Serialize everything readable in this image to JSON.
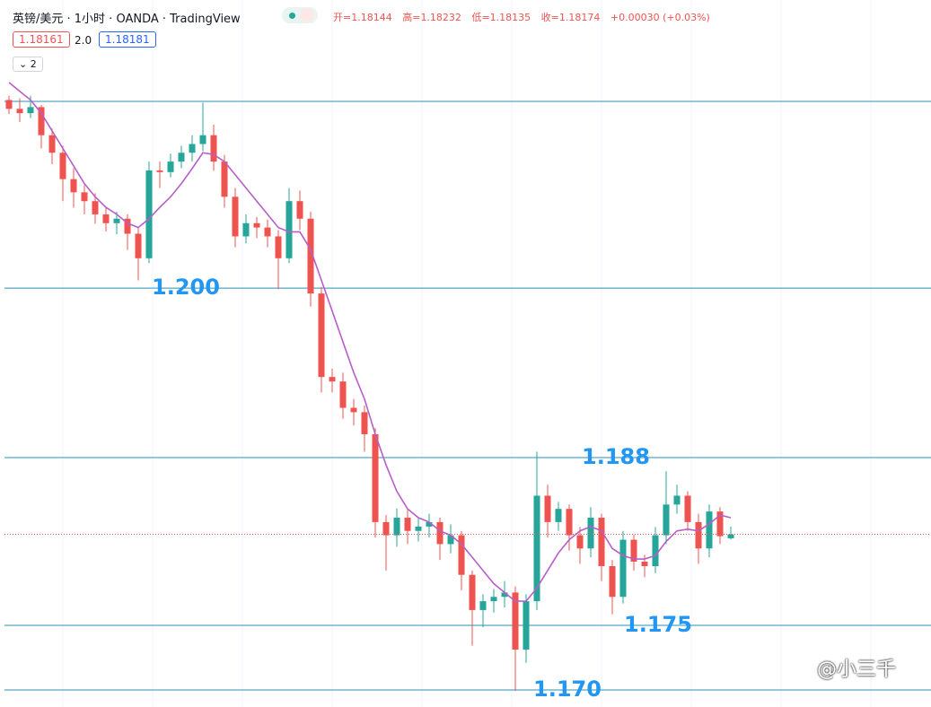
{
  "header": {
    "symbol": "英镑/美元 · 1小时 · OANDA · TradingView",
    "ohlc": [
      {
        "label": "开=",
        "value": 1.18144
      },
      {
        "label": "高=",
        "value": 1.18232
      },
      {
        "label": "低=",
        "value": 1.18135
      },
      {
        "label": "收=",
        "value": 1.18174
      }
    ],
    "change": "+0.00030 (+0.03%)",
    "bid": 1.18161,
    "spread": "2.0",
    "ask": 1.18181,
    "collapse": "2"
  },
  "watermark": "@小三千",
  "chart_data": {
    "type": "candlestick",
    "up_color": "#26a69a",
    "down_color": "#ef5350",
    "ylim": [
      1.16865,
      1.22225
    ],
    "open": [
      1.21467,
      1.214,
      1.21367,
      1.21413,
      1.212,
      1.21067,
      1.20867,
      1.20767,
      1.207,
      1.206,
      1.20533,
      1.20567,
      1.20453,
      1.20267,
      1.20933,
      1.2092,
      1.21,
      1.21067,
      1.21133,
      1.212,
      1.21,
      1.20733,
      1.20433,
      1.20533,
      1.205,
      1.20433,
      1.20267,
      1.207,
      1.20567,
      1.2,
      1.19367,
      1.19333,
      1.19133,
      1.191,
      1.18933,
      1.18267,
      1.18167,
      1.183,
      1.182,
      1.18233,
      1.18267,
      1.181,
      1.18167,
      1.17867,
      1.176,
      1.17667,
      1.177,
      1.17733,
      1.173,
      1.17667,
      1.18467,
      1.18267,
      1.18367,
      1.18167,
      1.18067,
      1.183,
      1.17933,
      1.177,
      1.18133,
      1.17967,
      1.17933,
      1.18167,
      1.184,
      1.18467,
      1.18267,
      1.18067,
      1.18347,
      1.18144
    ],
    "high": [
      1.215,
      1.2148,
      1.215,
      1.2143,
      1.2125,
      1.2112,
      1.2095,
      1.2082,
      1.2076,
      1.2065,
      1.2062,
      1.206,
      1.205,
      1.21,
      1.21,
      1.2106,
      1.2112,
      1.212,
      1.21447,
      1.2128,
      1.2105,
      1.208,
      1.206,
      1.2058,
      1.2056,
      1.2048,
      1.208,
      1.2078,
      1.2062,
      1.2005,
      1.1943,
      1.194,
      1.192,
      1.1915,
      1.1898,
      1.1832,
      1.1837,
      1.1836,
      1.183,
      1.1833,
      1.183,
      1.1825,
      1.182,
      1.179,
      1.1772,
      1.1776,
      1.1782,
      1.1778,
      1.1772,
      1.188,
      1.1855,
      1.1842,
      1.184,
      1.1823,
      1.1838,
      1.1833,
      1.1798,
      1.182,
      1.1817,
      1.1802,
      1.1823,
      1.18653,
      1.1855,
      1.185,
      1.1833,
      1.184,
      1.1838,
      1.18232
    ],
    "low": [
      1.2136,
      1.213,
      1.2133,
      1.211,
      1.2098,
      1.207,
      1.2065,
      1.206,
      1.2053,
      1.2047,
      1.2045,
      1.2033,
      1.201,
      1.2023,
      1.208,
      1.2088,
      1.2095,
      1.21,
      1.2108,
      1.2093,
      1.2065,
      1.2035,
      1.2038,
      1.2042,
      1.2035,
      1.20033,
      1.2023,
      1.2048,
      1.199,
      1.1925,
      1.1925,
      1.1905,
      1.19,
      1.188,
      1.1815,
      1.179,
      1.1808,
      1.181,
      1.1812,
      1.1815,
      1.1798,
      1.1803,
      1.1775,
      1.1733,
      1.1747,
      1.1758,
      1.1762,
      1.16987,
      1.172,
      1.176,
      1.1815,
      1.182,
      1.1805,
      1.1795,
      1.18,
      1.1782,
      1.17567,
      1.1765,
      1.179,
      1.1785,
      1.1788,
      1.181,
      1.1833,
      1.182,
      1.1795,
      1.18,
      1.181,
      1.18135
    ],
    "close": [
      1.214,
      1.21367,
      1.21413,
      1.212,
      1.21067,
      1.20867,
      1.20767,
      1.207,
      1.206,
      1.20533,
      1.20567,
      1.20453,
      1.20267,
      1.20933,
      1.2092,
      1.21,
      1.21067,
      1.21133,
      1.212,
      1.21,
      1.20733,
      1.20433,
      1.20533,
      1.205,
      1.20433,
      1.20267,
      1.207,
      1.20567,
      1.2,
      1.19367,
      1.19333,
      1.19133,
      1.191,
      1.18933,
      1.18267,
      1.18167,
      1.183,
      1.182,
      1.18233,
      1.18267,
      1.181,
      1.18167,
      1.17867,
      1.176,
      1.17667,
      1.177,
      1.17733,
      1.173,
      1.17667,
      1.18467,
      1.18267,
      1.18367,
      1.18167,
      1.18067,
      1.183,
      1.17933,
      1.177,
      1.18133,
      1.17967,
      1.17933,
      1.18167,
      1.184,
      1.18467,
      1.18267,
      1.18067,
      1.18347,
      1.1816,
      1.18174
    ],
    "ma": {
      "color": "#b65fc7",
      "values": [
        1.216,
        1.21533,
        1.21467,
        1.21367,
        1.21233,
        1.211,
        1.20967,
        1.20833,
        1.20733,
        1.20653,
        1.206,
        1.20533,
        1.205,
        1.20567,
        1.20653,
        1.20733,
        1.20833,
        1.20947,
        1.21067,
        1.21053,
        1.21,
        1.209,
        1.208,
        1.207,
        1.206,
        1.205,
        1.20467,
        1.20467,
        1.20333,
        1.201,
        1.19867,
        1.19633,
        1.194,
        1.192,
        1.18933,
        1.187,
        1.185,
        1.18367,
        1.183,
        1.18267,
        1.182,
        1.18167,
        1.181,
        1.18,
        1.179,
        1.178,
        1.17733,
        1.17667,
        1.17667,
        1.17767,
        1.179,
        1.18033,
        1.18133,
        1.182,
        1.18233,
        1.182,
        1.18067,
        1.18013,
        1.17987,
        1.17987,
        1.18013,
        1.1812,
        1.182,
        1.18213,
        1.182,
        1.18253,
        1.1832,
        1.183
      ]
    },
    "last_price": 1.18174,
    "last_price_color": "#ef5350",
    "level_color": "#2a8fb5",
    "level_label_color": "#2196f3",
    "levels": [
      {
        "value": 1.21456
      },
      {
        "value": 1.20041,
        "label": "1.200"
      },
      {
        "value": 1.18756,
        "label": "1.188"
      },
      {
        "value": 1.17484,
        "label": "1.175"
      },
      {
        "value": 1.16994,
        "label": "1.170"
      }
    ]
  }
}
